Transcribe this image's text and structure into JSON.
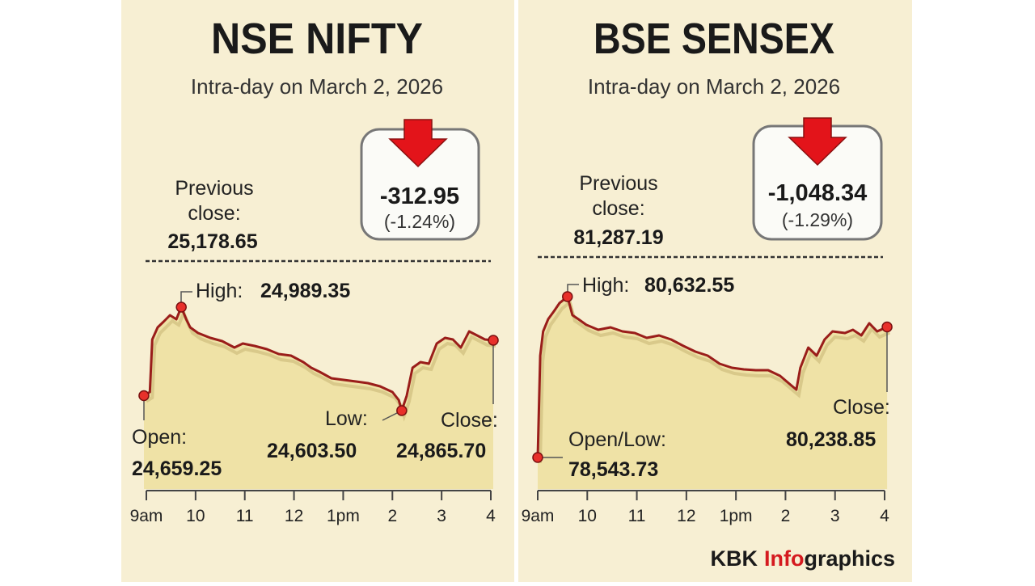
{
  "chart_data": [
    {
      "type": "area",
      "title": "NSE NIFTY",
      "subtitle": "Intra-day on March 2, 2026",
      "previous_close_label": "Previous close:",
      "previous_close": "25,178.65",
      "change": "-312.95",
      "change_pct": "(-1.24%)",
      "annotations": {
        "high": {
          "label": "High:",
          "value": "24,989.35"
        },
        "open": {
          "label": "Open:",
          "value": "24,659.25"
        },
        "low": {
          "label": "Low:",
          "value": "24,603.50"
        },
        "close": {
          "label": "Close:",
          "value": "24,865.70"
        }
      },
      "color": "#9a1d1a",
      "fill": "#efe2a6",
      "xlim": [
        9,
        16
      ],
      "xticks": [
        {
          "value": 9,
          "label": "9am"
        },
        10,
        11,
        12,
        {
          "value": 13,
          "label": "1pm"
        },
        {
          "value": 14,
          "label": "2"
        },
        {
          "value": 15,
          "label": "3"
        },
        {
          "value": 16,
          "label": "4"
        }
      ],
      "x": [
        8.95,
        9.07,
        9.12,
        9.23,
        9.35,
        9.48,
        9.61,
        9.71,
        9.81,
        9.89,
        10.05,
        10.3,
        10.54,
        10.79,
        10.96,
        11.2,
        11.45,
        11.69,
        11.94,
        12.19,
        12.35,
        12.52,
        12.76,
        13.01,
        13.26,
        13.5,
        13.75,
        14.0,
        14.13,
        14.19,
        14.29,
        14.41,
        14.57,
        14.74,
        14.9,
        15.07,
        15.23,
        15.39,
        15.56,
        15.72,
        15.88,
        16.05
      ],
      "values": [
        24659.25,
        24672.8,
        24868.8,
        24914.0,
        24935.2,
        24959.3,
        24944.2,
        24989.35,
        24944.2,
        24914.0,
        24892.9,
        24874.9,
        24862.8,
        24838.7,
        24853.7,
        24844.7,
        24832.6,
        24814.6,
        24808.5,
        24784.4,
        24763.3,
        24748.2,
        24724.1,
        24718.1,
        24712.0,
        24706.0,
        24694.0,
        24672.8,
        24642.7,
        24603.5,
        24657.8,
        24763.3,
        24784.4,
        24778.4,
        24853.7,
        24874.9,
        24868.8,
        24838.7,
        24899.0,
        24883.9,
        24868.8,
        24865.7
      ]
    },
    {
      "type": "area",
      "title": "BSE SENSEX",
      "subtitle": "Intra-day on March 2, 2026",
      "previous_close_label": "Previous close:",
      "previous_close": "81,287.19",
      "change": "-1,048.34",
      "change_pct": "(-1.29%)",
      "annotations": {
        "high": {
          "label": "High:",
          "value": "80,632.55"
        },
        "open_low": {
          "label": "Open/Low:",
          "value": "78,543.73"
        },
        "close": {
          "label": "Close:",
          "value": "80,238.85"
        }
      },
      "color": "#9a1d1a",
      "fill": "#efe2a6",
      "xlim": [
        9,
        16
      ],
      "xticks": [
        {
          "value": 9,
          "label": "9am"
        },
        10,
        11,
        12,
        {
          "value": 13,
          "label": "1pm"
        },
        {
          "value": 14,
          "label": "2"
        },
        {
          "value": 15,
          "label": "3"
        },
        {
          "value": 16,
          "label": "4"
        }
      ],
      "x": [
        9.0,
        9.05,
        9.11,
        9.21,
        9.33,
        9.44,
        9.6,
        9.7,
        9.82,
        9.98,
        10.22,
        10.47,
        10.71,
        10.96,
        11.2,
        11.45,
        11.69,
        11.94,
        12.18,
        12.43,
        12.67,
        12.92,
        13.16,
        13.4,
        13.65,
        13.89,
        14.14,
        14.22,
        14.3,
        14.46,
        14.63,
        14.79,
        14.95,
        15.2,
        15.36,
        15.53,
        15.69,
        15.85,
        16.05
      ],
      "values": [
        78543.73,
        79866.7,
        80181.7,
        80339.2,
        80444.2,
        80549.2,
        80632.55,
        80391.7,
        80339.2,
        80265.7,
        80202.7,
        80234.2,
        80181.7,
        80160.7,
        80097.7,
        80129.2,
        80076.7,
        79992.7,
        79919.2,
        79866.7,
        79761.7,
        79709.2,
        79688.2,
        79677.7,
        79677.7,
        79604.2,
        79467.7,
        79425.7,
        79709.2,
        79971.7,
        79866.7,
        80076.7,
        80181.7,
        80160.7,
        80202.7,
        80129.2,
        80286.7,
        80181.7,
        80238.85
      ]
    }
  ],
  "footer": {
    "brand": "KBK",
    "accent": "Info",
    "rest": "graphics"
  }
}
